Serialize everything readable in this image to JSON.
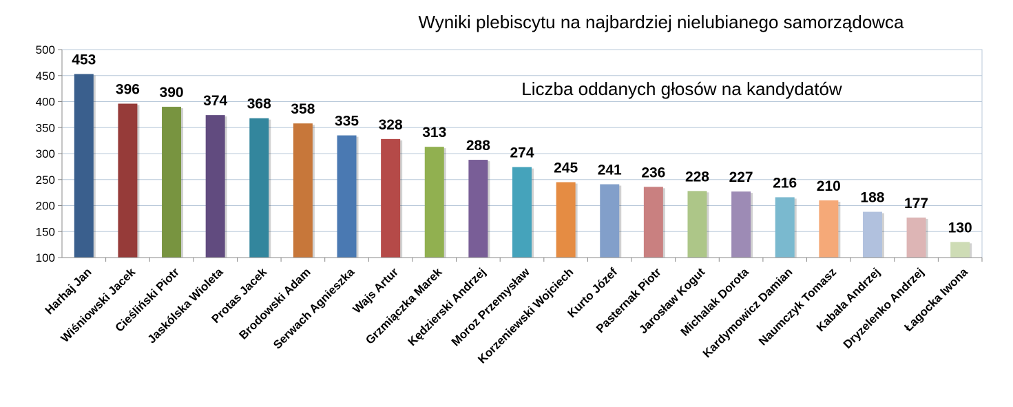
{
  "chart_data": {
    "type": "bar",
    "title": "Wyniki plebiscytu na najbardziej nielubianego samorządowca",
    "subtitle": "Liczba oddanych głosów na kandydatów",
    "xlabel": "",
    "ylabel": "",
    "ylim": [
      100,
      500
    ],
    "yticks": [
      "100",
      "150",
      "200",
      "250",
      "300",
      "350",
      "400",
      "450",
      "500"
    ],
    "grid": true,
    "categories": [
      "Harhaj Jan",
      "Wiśniowski Jacek",
      "Cieśliński Piotr",
      "Jaskólska Wioleta",
      "Protas Jacek",
      "Brodowski Adam",
      "Serwach Agnieszka",
      "Wajs Artur",
      "Grzmiączka Marek",
      "Kędzierski Andrzej",
      "Moroz Przemysław",
      "Korzeniewski Wojciech",
      "Kurto Józef",
      "Pasternak Piotr",
      "Jarosław Kogut",
      "Michalak Dorota",
      "Kardymowicz Damian",
      "Naumczyk Tomasz",
      "Kabała Andrzej",
      "Dryzelenko Andrzej",
      "Łagocka Iwona"
    ],
    "values": [
      453,
      396,
      390,
      374,
      368,
      358,
      335,
      328,
      313,
      288,
      274,
      245,
      241,
      236,
      228,
      227,
      216,
      210,
      188,
      177,
      130
    ],
    "colors": [
      "#3a5f8d",
      "#963b39",
      "#789440",
      "#614b7f",
      "#33869d",
      "#c7773a",
      "#4a79b2",
      "#b54a48",
      "#91b050",
      "#795e97",
      "#45a3bb",
      "#e58c43",
      "#829fca",
      "#c98080",
      "#adc688",
      "#9d8bb5",
      "#7ab9cf",
      "#f5a978",
      "#b1c1de",
      "#ddb5b5",
      "#cedcb5"
    ]
  }
}
